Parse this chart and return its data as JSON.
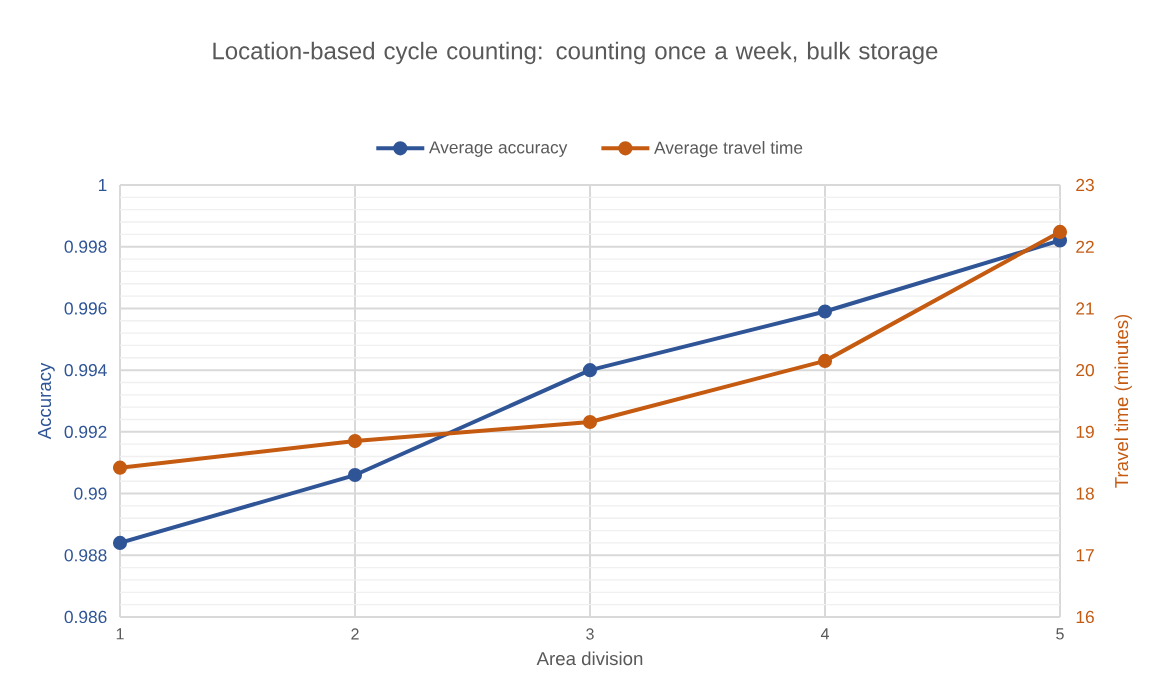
{
  "chart_data": {
    "type": "line",
    "title": "Location-based cycle counting: counting once a week, bulk storage",
    "xlabel": "Area division",
    "ylabel": "Accuracy",
    "y2label": "Travel time (minutes)",
    "x": [
      1,
      2,
      3,
      4,
      5
    ],
    "series": [
      {
        "name": "Average accuracy",
        "color": "#2f5597",
        "values": [
          0.9884,
          0.9906,
          0.994,
          0.9959,
          0.9982
        ]
      },
      {
        "name": "Average travel time",
        "color": "#c55a11",
        "axis": "y2",
        "values": [
          18.42,
          18.85,
          19.16,
          20.15,
          22.24
        ]
      }
    ],
    "xlim": [
      1,
      5
    ],
    "xticks": [
      1,
      2,
      3,
      4,
      5
    ],
    "ylim": [
      0.986,
      1
    ],
    "yticks": [
      0.986,
      0.988,
      0.99,
      0.992,
      0.994,
      0.996,
      0.998,
      1
    ],
    "y2lim": [
      16,
      23
    ],
    "y2ticks": [
      16,
      17,
      18,
      19,
      20,
      21,
      22,
      23
    ],
    "grid": true,
    "legend": "top",
    "marker": "circle",
    "line_style": "solid"
  }
}
